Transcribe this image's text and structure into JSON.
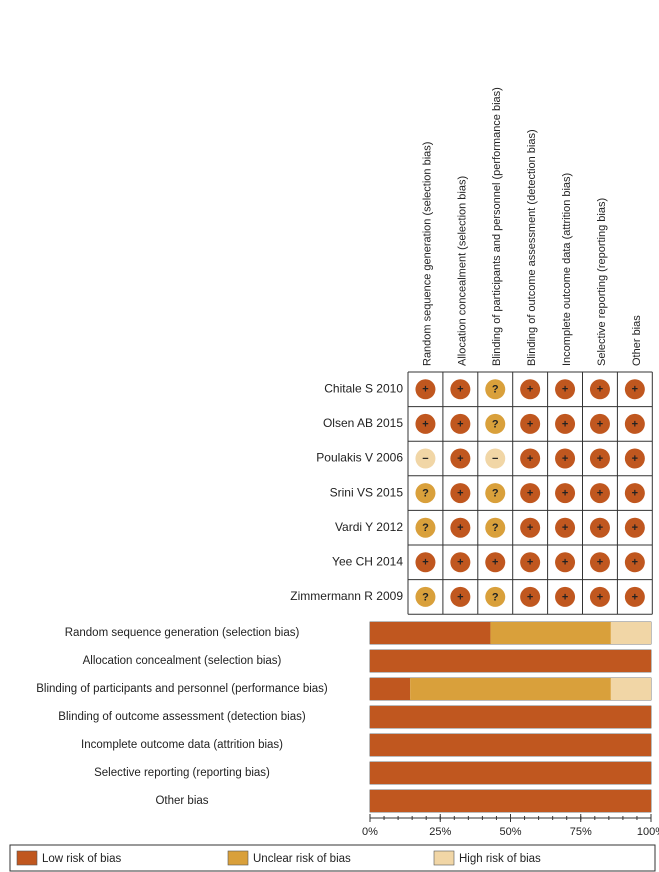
{
  "summary": {
    "domains": [
      "Random sequence generation (selection bias)",
      "Allocation concealment (selection bias)",
      "Blinding of participants and personnel (performance bias)",
      "Blinding of outcome assessment (detection bias)",
      "Incomplete outcome data (attrition bias)",
      "Selective reporting (reporting bias)",
      "Other bias"
    ],
    "studies": [
      {
        "name": "Chitale S 2010",
        "judgments": [
          "+",
          "+",
          "?",
          "+",
          "+",
          "+",
          "+"
        ]
      },
      {
        "name": "Olsen AB 2015",
        "judgments": [
          "+",
          "+",
          "?",
          "+",
          "+",
          "+",
          "+"
        ]
      },
      {
        "name": "Poulakis V 2006",
        "judgments": [
          "−",
          "+",
          "−",
          "+",
          "+",
          "+",
          "+"
        ]
      },
      {
        "name": "Srini VS 2015",
        "judgments": [
          "?",
          "+",
          "?",
          "+",
          "+",
          "+",
          "+"
        ]
      },
      {
        "name": "Vardi Y 2012",
        "judgments": [
          "?",
          "+",
          "?",
          "+",
          "+",
          "+",
          "+"
        ]
      },
      {
        "name": "Yee CH 2014",
        "judgments": [
          "+",
          "+",
          "+",
          "+",
          "+",
          "+",
          "+"
        ]
      },
      {
        "name": "Zimmermann R 2009",
        "judgments": [
          "?",
          "+",
          "?",
          "+",
          "+",
          "+",
          "+"
        ]
      }
    ],
    "judgment_colors": {
      "+": "#c0571f",
      "?": "#d9a03b",
      "−": "#f1d6a6"
    }
  },
  "chart_data": {
    "type": "stacked-bar-horizontal",
    "categories": [
      "Random sequence generation (selection bias)",
      "Allocation concealment (selection bias)",
      "Blinding of participants and personnel (performance bias)",
      "Blinding of outcome assessment (detection bias)",
      "Incomplete outcome data (attrition bias)",
      "Selective reporting (reporting bias)",
      "Other bias"
    ],
    "series": [
      {
        "name": "Low risk of bias",
        "color": "#c0571f",
        "values": [
          42.86,
          100,
          14.29,
          100,
          100,
          100,
          100
        ]
      },
      {
        "name": "Unclear risk of bias",
        "color": "#d9a03b",
        "values": [
          42.86,
          0,
          71.43,
          0,
          0,
          0,
          0
        ]
      },
      {
        "name": "High risk of bias",
        "color": "#f1d6a6",
        "values": [
          14.29,
          0,
          14.29,
          0,
          0,
          0,
          0
        ]
      }
    ],
    "xlim": [
      0,
      100
    ],
    "xticks": [
      {
        "value": 0,
        "label": "0%"
      },
      {
        "value": 25,
        "label": "25%"
      },
      {
        "value": 50,
        "label": "50%"
      },
      {
        "value": 75,
        "label": "75%"
      },
      {
        "value": 100,
        "label": "100%"
      }
    ]
  }
}
